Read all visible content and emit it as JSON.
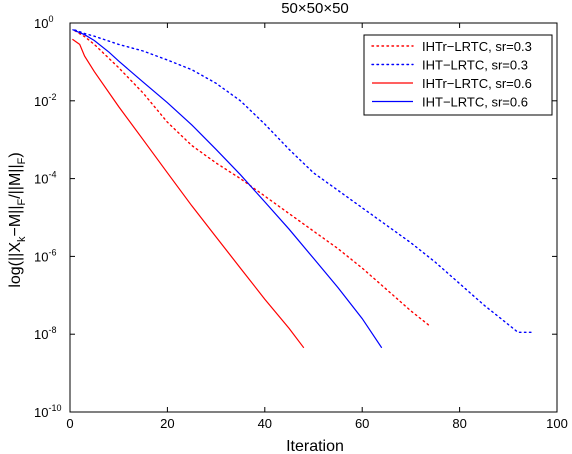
{
  "chart_data": {
    "type": "line",
    "title": "50×50×50",
    "xlabel": "Iteration",
    "ylabel": {
      "base": "log(||X",
      "sub1": "k",
      "mid": "−M||",
      "sub2": "F",
      "mid2": "/||M||",
      "sub3": "F",
      "end": ")"
    },
    "xlim": [
      0,
      100
    ],
    "ylim_log10": [
      -10,
      0
    ],
    "y_scale": "log",
    "xticks": [
      0,
      20,
      40,
      60,
      80,
      100
    ],
    "yticks": [
      {
        "base": "10",
        "exp": "0",
        "value": 0
      },
      {
        "base": "10",
        "exp": "-2",
        "value": -2
      },
      {
        "base": "10",
        "exp": "-4",
        "value": -4
      },
      {
        "base": "10",
        "exp": "-6",
        "value": -6
      },
      {
        "base": "10",
        "exp": "-8",
        "value": -8
      },
      {
        "base": "10",
        "exp": "-10",
        "value": -10
      }
    ],
    "grid": false,
    "legend_position": "top-right",
    "series": [
      {
        "name": "IHTr−LRTC, sr=0.3",
        "color": "#ff0000",
        "style": "dotted",
        "points": [
          [
            1,
            -0.2
          ],
          [
            3,
            -0.35
          ],
          [
            5,
            -0.55
          ],
          [
            10,
            -1.15
          ],
          [
            15,
            -1.8
          ],
          [
            20,
            -2.55
          ],
          [
            25,
            -3.15
          ],
          [
            30,
            -3.6
          ],
          [
            35,
            -4.0
          ],
          [
            40,
            -4.45
          ],
          [
            45,
            -4.9
          ],
          [
            50,
            -5.35
          ],
          [
            55,
            -5.8
          ],
          [
            60,
            -6.3
          ],
          [
            65,
            -6.85
          ],
          [
            70,
            -7.4
          ],
          [
            74,
            -7.8
          ]
        ]
      },
      {
        "name": "IHT−LRTC, sr=0.3",
        "color": "#0000ff",
        "style": "dotted",
        "points": [
          [
            1,
            -0.18
          ],
          [
            3,
            -0.27
          ],
          [
            5,
            -0.34
          ],
          [
            10,
            -0.55
          ],
          [
            15,
            -0.72
          ],
          [
            20,
            -0.95
          ],
          [
            25,
            -1.2
          ],
          [
            30,
            -1.55
          ],
          [
            35,
            -2.0
          ],
          [
            40,
            -2.6
          ],
          [
            45,
            -3.25
          ],
          [
            50,
            -3.85
          ],
          [
            55,
            -4.3
          ],
          [
            60,
            -4.75
          ],
          [
            65,
            -5.2
          ],
          [
            70,
            -5.65
          ],
          [
            75,
            -6.15
          ],
          [
            80,
            -6.7
          ],
          [
            85,
            -7.25
          ],
          [
            90,
            -7.75
          ],
          [
            92,
            -7.95
          ],
          [
            95,
            -7.95
          ]
        ]
      },
      {
        "name": "IHTr−LRTC, sr=0.6",
        "color": "#ff0000",
        "style": "solid",
        "points": [
          [
            0.5,
            -0.42
          ],
          [
            2,
            -0.55
          ],
          [
            3,
            -0.85
          ],
          [
            5,
            -1.25
          ],
          [
            10,
            -2.15
          ],
          [
            15,
            -3.0
          ],
          [
            20,
            -3.85
          ],
          [
            25,
            -4.7
          ],
          [
            30,
            -5.5
          ],
          [
            35,
            -6.3
          ],
          [
            40,
            -7.1
          ],
          [
            45,
            -7.85
          ],
          [
            48,
            -8.35
          ]
        ]
      },
      {
        "name": "IHT−LRTC, sr=0.6",
        "color": "#0000ff",
        "style": "solid",
        "points": [
          [
            0.5,
            -0.17
          ],
          [
            3,
            -0.3
          ],
          [
            5,
            -0.45
          ],
          [
            8,
            -0.75
          ],
          [
            10,
            -0.98
          ],
          [
            15,
            -1.52
          ],
          [
            20,
            -2.05
          ],
          [
            25,
            -2.62
          ],
          [
            30,
            -3.25
          ],
          [
            35,
            -3.9
          ],
          [
            40,
            -4.6
          ],
          [
            45,
            -5.3
          ],
          [
            50,
            -6.05
          ],
          [
            55,
            -6.8
          ],
          [
            60,
            -7.6
          ],
          [
            64,
            -8.35
          ]
        ]
      }
    ]
  }
}
